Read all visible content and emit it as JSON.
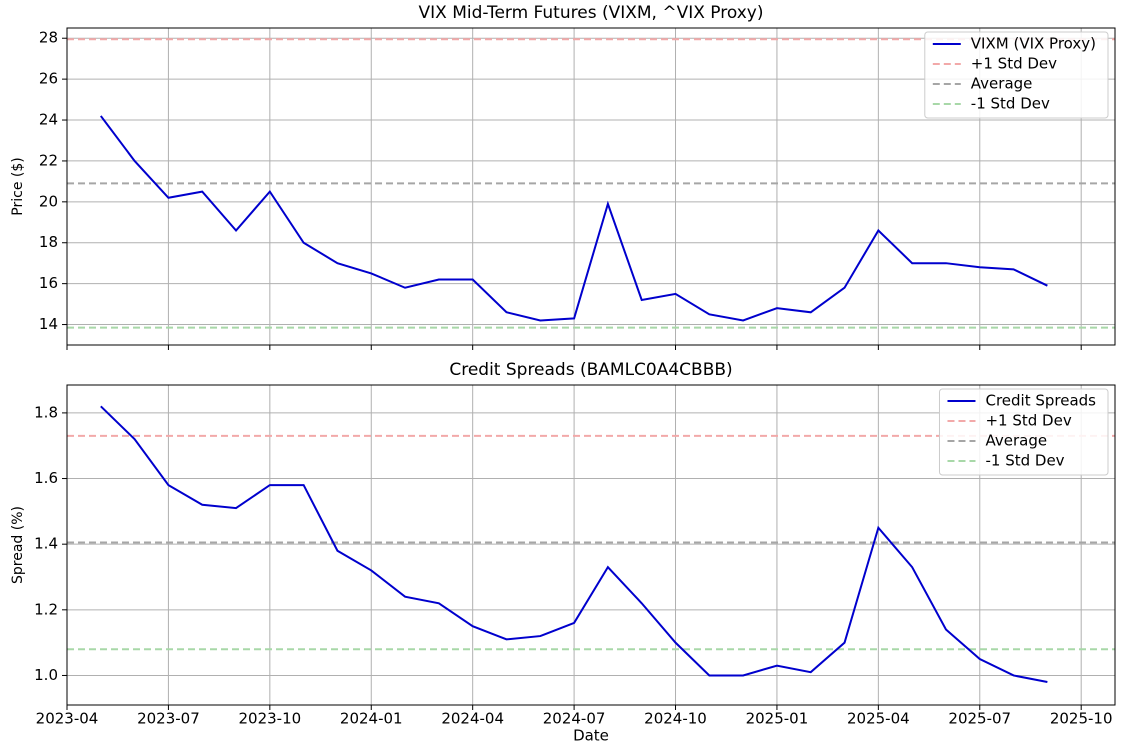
{
  "chart_data": [
    {
      "type": "line",
      "title": "VIX Mid-Term Futures (VIXM, ^VIX Proxy)",
      "ylabel": "Price ($)",
      "x": [
        "2023-05",
        "2023-06",
        "2023-07",
        "2023-08",
        "2023-09",
        "2023-10",
        "2023-11",
        "2023-12",
        "2024-01",
        "2024-02",
        "2024-03",
        "2024-04",
        "2024-05",
        "2024-06",
        "2024-07",
        "2024-08",
        "2024-09",
        "2024-10",
        "2024-11",
        "2024-12",
        "2025-01",
        "2025-02",
        "2025-03",
        "2025-04",
        "2025-05",
        "2025-06",
        "2025-07",
        "2025-08",
        "2025-09"
      ],
      "series": [
        {
          "name": "VIXM (VIX Proxy)",
          "color": "#0000cd",
          "values": [
            24.2,
            22.0,
            20.2,
            20.5,
            18.6,
            20.5,
            18.0,
            17.0,
            16.5,
            15.8,
            16.2,
            16.2,
            14.6,
            14.2,
            14.3,
            19.9,
            15.2,
            15.5,
            14.5,
            14.2,
            14.8,
            14.6,
            15.8,
            18.6,
            17.0,
            17.0,
            16.8,
            16.7,
            15.9
          ]
        }
      ],
      "hlines": [
        {
          "name": "+1 Std Dev",
          "color": "#f2a9a9",
          "value": 27.95
        },
        {
          "name": "Average",
          "color": "#a6a6a6",
          "value": 20.9
        },
        {
          "name": "-1 Std Dev",
          "color": "#a8d8a8",
          "value": 13.85
        }
      ],
      "xlim": [
        "2023-04",
        "2025-11"
      ],
      "xticks": [
        "2023-04",
        "2023-07",
        "2023-10",
        "2024-01",
        "2024-04",
        "2024-07",
        "2024-10",
        "2025-01",
        "2025-04",
        "2025-07",
        "2025-10"
      ],
      "ylim": [
        13.0,
        28.5
      ],
      "yticks": [
        14,
        16,
        18,
        20,
        22,
        24,
        26,
        28
      ],
      "grid": true,
      "legend": "upper right"
    },
    {
      "type": "line",
      "title": "Credit Spreads (BAMLC0A4CBBB)",
      "ylabel": "Spread (%)",
      "xlabel": "Date",
      "x": [
        "2023-05",
        "2023-06",
        "2023-07",
        "2023-08",
        "2023-09",
        "2023-10",
        "2023-11",
        "2023-12",
        "2024-01",
        "2024-02",
        "2024-03",
        "2024-04",
        "2024-05",
        "2024-06",
        "2024-07",
        "2024-08",
        "2024-09",
        "2024-10",
        "2024-11",
        "2024-12",
        "2025-01",
        "2025-02",
        "2025-03",
        "2025-04",
        "2025-05",
        "2025-06",
        "2025-07",
        "2025-08",
        "2025-09"
      ],
      "series": [
        {
          "name": "Credit Spreads",
          "color": "#0000cd",
          "values": [
            1.82,
            1.72,
            1.58,
            1.52,
            1.51,
            1.58,
            1.58,
            1.38,
            1.32,
            1.24,
            1.22,
            1.15,
            1.11,
            1.12,
            1.16,
            1.33,
            1.22,
            1.1,
            1.0,
            1.0,
            1.03,
            1.01,
            1.1,
            1.45,
            1.33,
            1.14,
            1.05,
            1.0,
            0.98
          ]
        }
      ],
      "hlines": [
        {
          "name": "+1 Std Dev",
          "color": "#f2a9a9",
          "value": 1.73
        },
        {
          "name": "Average",
          "color": "#a6a6a6",
          "value": 1.405
        },
        {
          "name": "-1 Std Dev",
          "color": "#a8d8a8",
          "value": 1.08
        }
      ],
      "xlim": [
        "2023-04",
        "2025-11"
      ],
      "xticks": [
        "2023-04",
        "2023-07",
        "2023-10",
        "2024-01",
        "2024-04",
        "2024-07",
        "2024-10",
        "2025-01",
        "2025-04",
        "2025-07",
        "2025-10"
      ],
      "ylim": [
        0.91,
        1.885
      ],
      "yticks": [
        {
          "value": 1.0,
          "label": "1.0"
        },
        {
          "value": 1.2,
          "label": "1.2"
        },
        {
          "value": 1.4,
          "label": "1.4"
        },
        {
          "value": 1.6,
          "label": "1.6"
        },
        {
          "value": 1.8,
          "label": "1.8"
        }
      ],
      "grid": true,
      "legend": "upper right"
    }
  ]
}
